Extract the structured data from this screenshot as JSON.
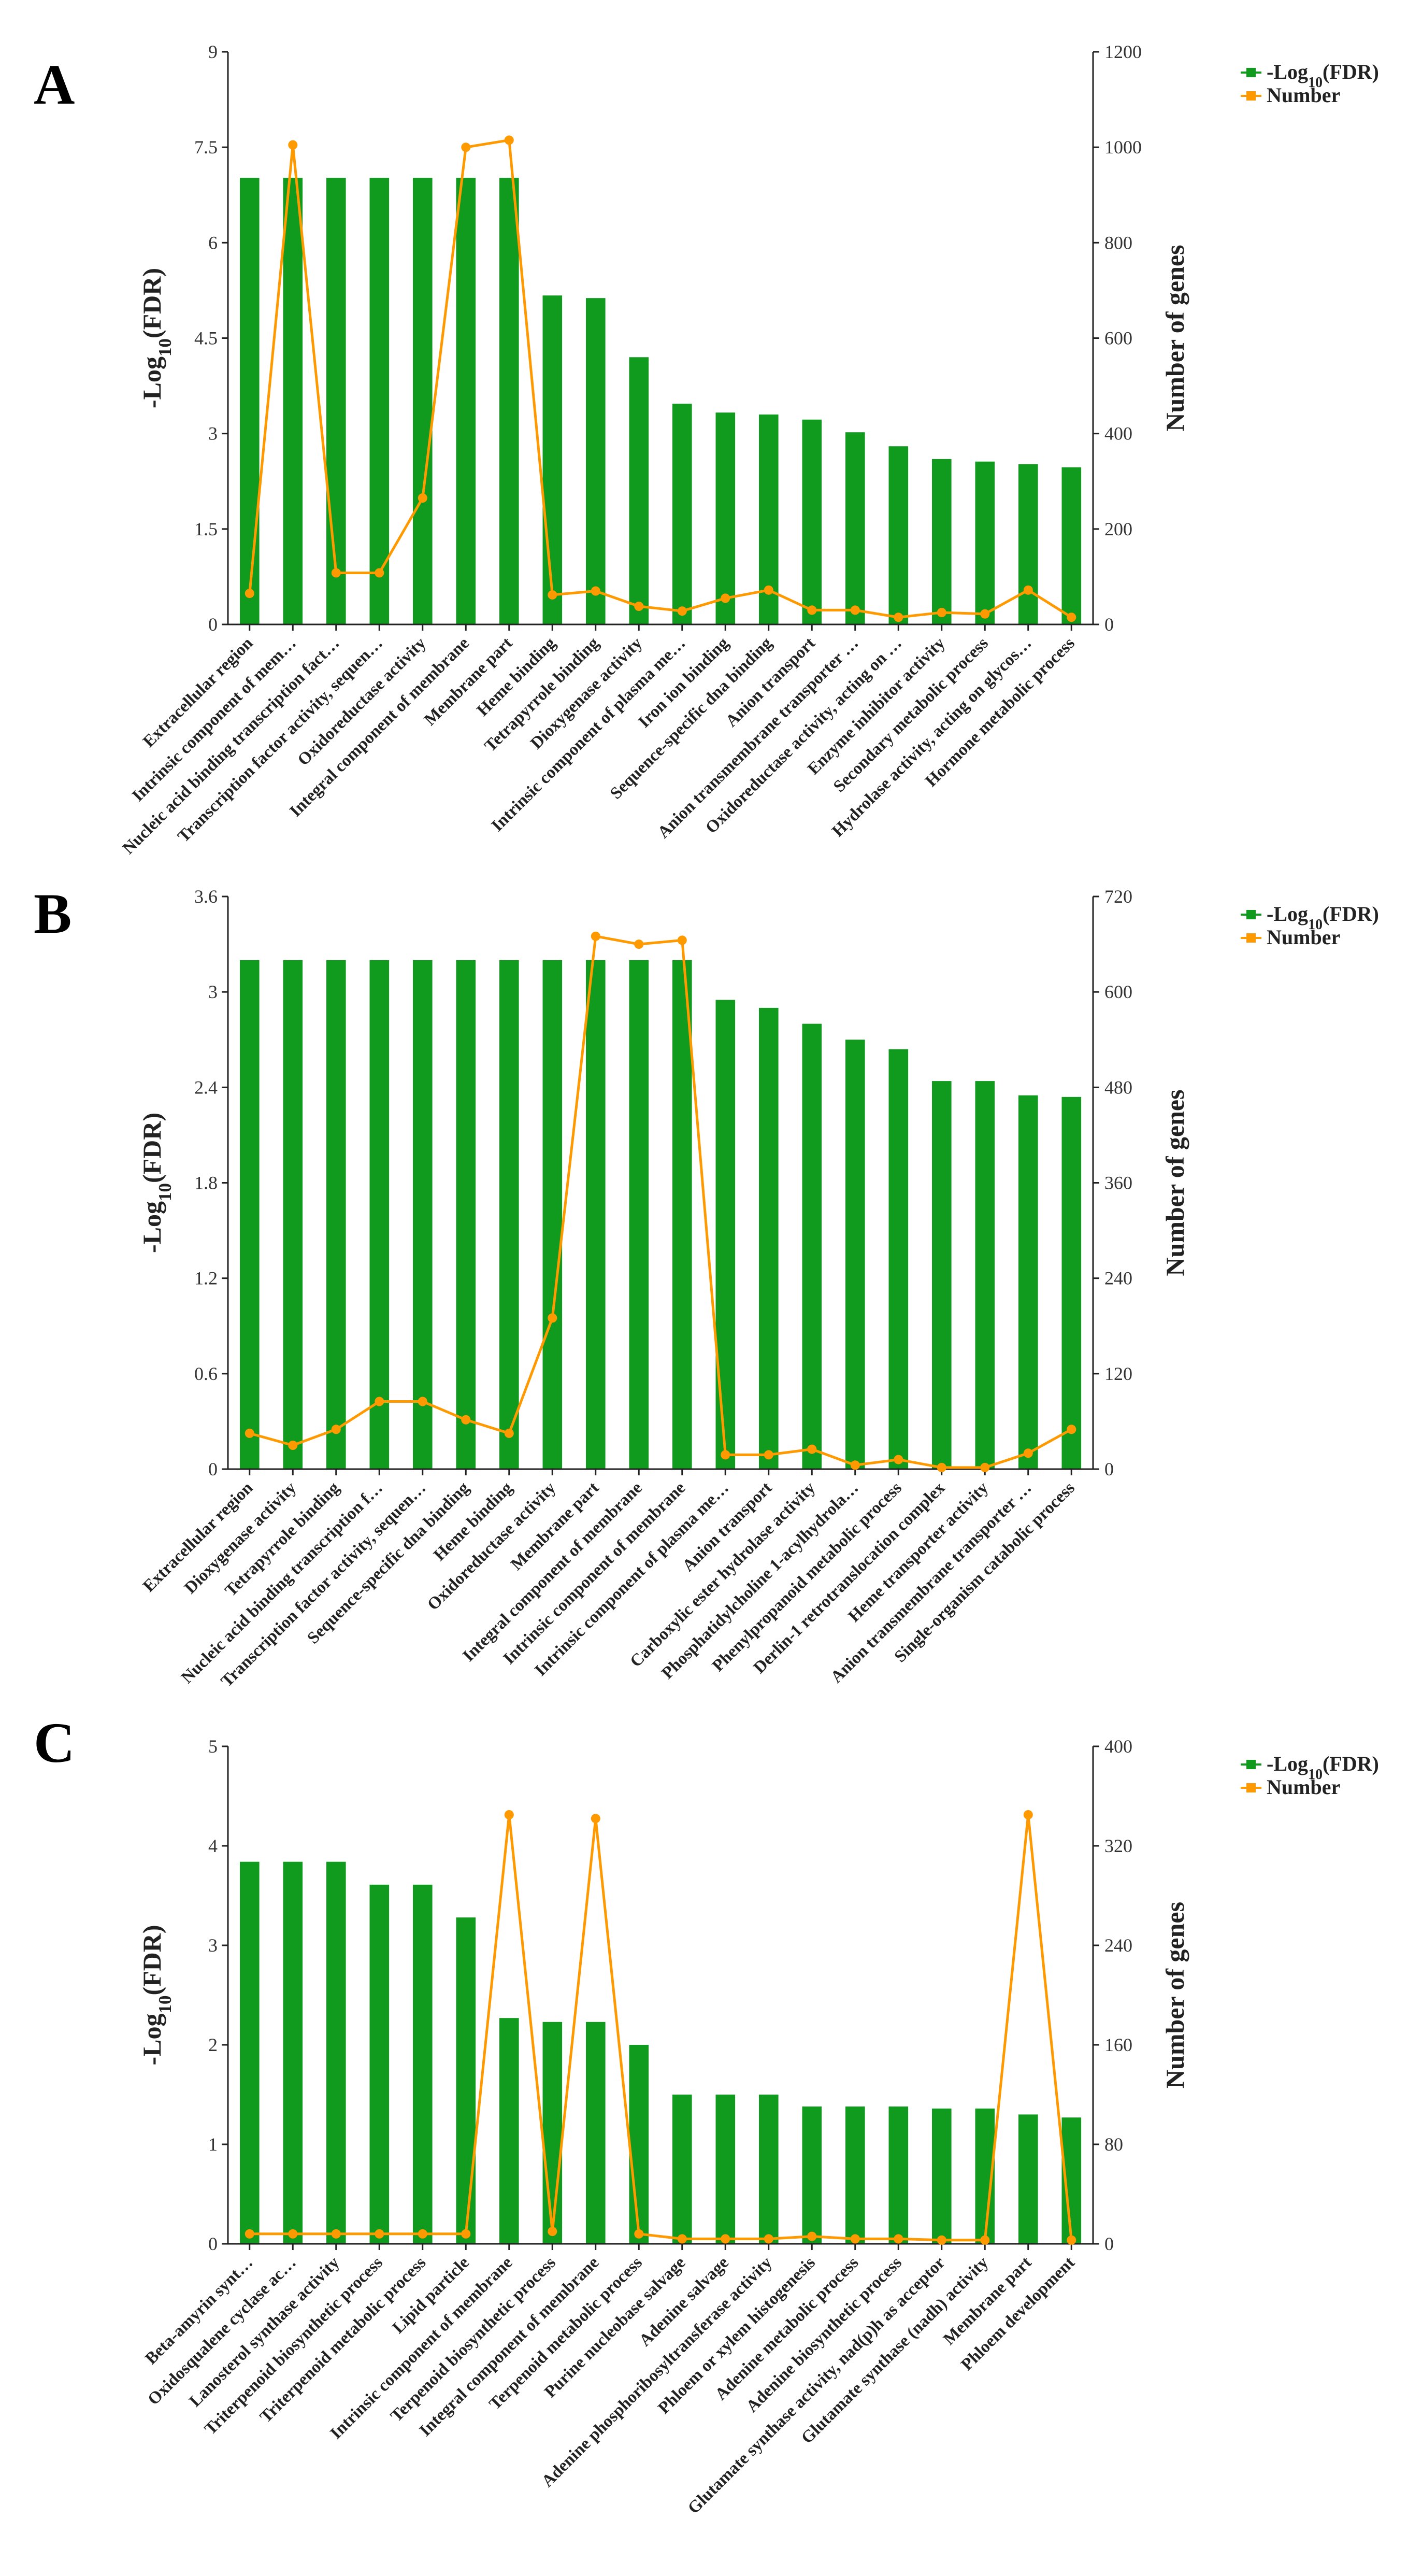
{
  "figure": {
    "panels": [
      "A",
      "B",
      "C"
    ],
    "colors": {
      "bar": "#119B1E",
      "line": "#FF9900",
      "axis": "#222222"
    }
  },
  "legend": {
    "bar_label": "-Log10(FDR)",
    "line_label": "Number"
  },
  "chart_data": [
    {
      "type": "bar",
      "panel_label": "A",
      "ylabel_left": "-Log10(FDR)",
      "ylabel_right": "Number of genes",
      "ylim_left": [
        0,
        9
      ],
      "ylim_right": [
        0,
        1200
      ],
      "yticks_left": [
        "0",
        "1.5",
        "3",
        "4.5",
        "6",
        "7.5",
        "9"
      ],
      "yticks_right": [
        "0",
        "200",
        "400",
        "600",
        "800",
        "1000",
        "1200"
      ],
      "categories": [
        "Extracellular region",
        "Intrinsic component of mem…",
        "Nucleic acid binding transcription fact…",
        "Transcription factor activity, sequen…",
        "Oxidoreductase activity",
        "Integral component of membrane",
        "Membrane part",
        "Heme binding",
        "Tetrapyrrole binding",
        "Dioxygenase activity",
        "Intrinsic component of plasma me…",
        "Iron ion binding",
        "Sequence-specific dna binding",
        "Anion transport",
        "Anion transmembrane transporter …",
        "Oxidoreductase activity, acting on …",
        "Enzyme inhibitor activity",
        "Secondary metabolic process",
        "Hydrolase activity, acting on glycos…",
        "Hormone metabolic process"
      ],
      "series": [
        {
          "name": "-Log10(FDR)",
          "kind": "bar",
          "values": [
            7.02,
            7.02,
            7.02,
            7.02,
            7.02,
            7.02,
            7.02,
            5.17,
            5.13,
            4.2,
            3.47,
            3.33,
            3.3,
            3.22,
            3.02,
            2.8,
            2.6,
            2.56,
            2.52,
            2.47
          ]
        },
        {
          "name": "Number",
          "kind": "line",
          "values": [
            65,
            1005,
            108,
            108,
            265,
            1000,
            1015,
            62,
            70,
            38,
            28,
            55,
            72,
            30,
            30,
            15,
            25,
            22,
            72,
            15
          ]
        }
      ]
    },
    {
      "type": "bar",
      "panel_label": "B",
      "ylabel_left": "-Log10(FDR)",
      "ylabel_right": "Number of genes",
      "ylim_left": [
        0,
        3.6
      ],
      "ylim_right": [
        0,
        720
      ],
      "yticks_left": [
        "0",
        "0.6",
        "1.2",
        "1.8",
        "2.4",
        "3",
        "3.6"
      ],
      "yticks_right": [
        "0",
        "120",
        "240",
        "360",
        "480",
        "600",
        "720"
      ],
      "categories": [
        "Extracellular region",
        "Dioxygenase activity",
        "Tetrapyrrole binding",
        "Nucleic acid binding transcription f…",
        "Transcription factor activity, sequen…",
        "Sequence-specific dna binding",
        "Heme binding",
        "Oxidoreductase activity",
        "Membrane part",
        "Integral component of membrane",
        "Intrinsic component of membrane",
        "Intrinsic component of plasma me…",
        "Anion transport",
        "Carboxylic ester hydrolase activity",
        "Phosphatidylcholine 1-acylhydrola…",
        "Phenylpropanoid metabolic process",
        "Derlin-1 retrotranslocation complex",
        "Heme transporter activity",
        "Anion transmembrane transporter …",
        "Single-organism catabolic process"
      ],
      "series": [
        {
          "name": "-Log10(FDR)",
          "kind": "bar",
          "values": [
            3.2,
            3.2,
            3.2,
            3.2,
            3.2,
            3.2,
            3.2,
            3.2,
            3.2,
            3.2,
            3.2,
            2.95,
            2.9,
            2.8,
            2.7,
            2.64,
            2.44,
            2.44,
            2.35,
            2.34
          ]
        },
        {
          "name": "Number",
          "kind": "line",
          "values": [
            45,
            30,
            50,
            85,
            85,
            62,
            45,
            190,
            670,
            660,
            665,
            18,
            18,
            25,
            5,
            12,
            2,
            2,
            20,
            50
          ]
        }
      ]
    },
    {
      "type": "bar",
      "panel_label": "C",
      "ylabel_left": "-Log10(FDR)",
      "ylabel_right": "Number of genes",
      "ylim_left": [
        0,
        5
      ],
      "ylim_right": [
        0,
        400
      ],
      "yticks_left": [
        "0",
        "1",
        "2",
        "3",
        "4",
        "5"
      ],
      "yticks_right": [
        "0",
        "80",
        "160",
        "240",
        "320",
        "400"
      ],
      "categories": [
        "Beta-amyrin synt…",
        "Oxidosqualene cyclase ac…",
        "Lanosterol synthase activity",
        "Triterpenoid biosynthetic process",
        "Triterpenoid metabolic process",
        "Lipid particle",
        "Intrinsic component of membrane",
        "Terpenoid biosynthetic process",
        "Integral component of membrane",
        "Terpenoid metabolic process",
        "Purine nucleobase salvage",
        "Adenine salvage",
        "Adenine phosphoribosyltransferase activity",
        "Phloem or xylem histogenesis",
        "Adenine metabolic process",
        "Adenine biosynthetic process",
        "Glutamate synthase activity, nad(p)h as acceptor",
        "Glutamate synthase (nadh) activity",
        "Membrane part",
        "Phloem development"
      ],
      "series": [
        {
          "name": "-Log10(FDR)",
          "kind": "bar",
          "values": [
            3.84,
            3.84,
            3.84,
            3.61,
            3.61,
            3.28,
            2.27,
            2.23,
            2.23,
            2.0,
            1.5,
            1.5,
            1.5,
            1.38,
            1.38,
            1.38,
            1.36,
            1.36,
            1.3,
            1.27
          ]
        },
        {
          "name": "Number",
          "kind": "line",
          "values": [
            8,
            8,
            8,
            8,
            8,
            8,
            345,
            10,
            342,
            8,
            4,
            4,
            4,
            6,
            4,
            4,
            3,
            3,
            345,
            3
          ]
        }
      ]
    }
  ]
}
